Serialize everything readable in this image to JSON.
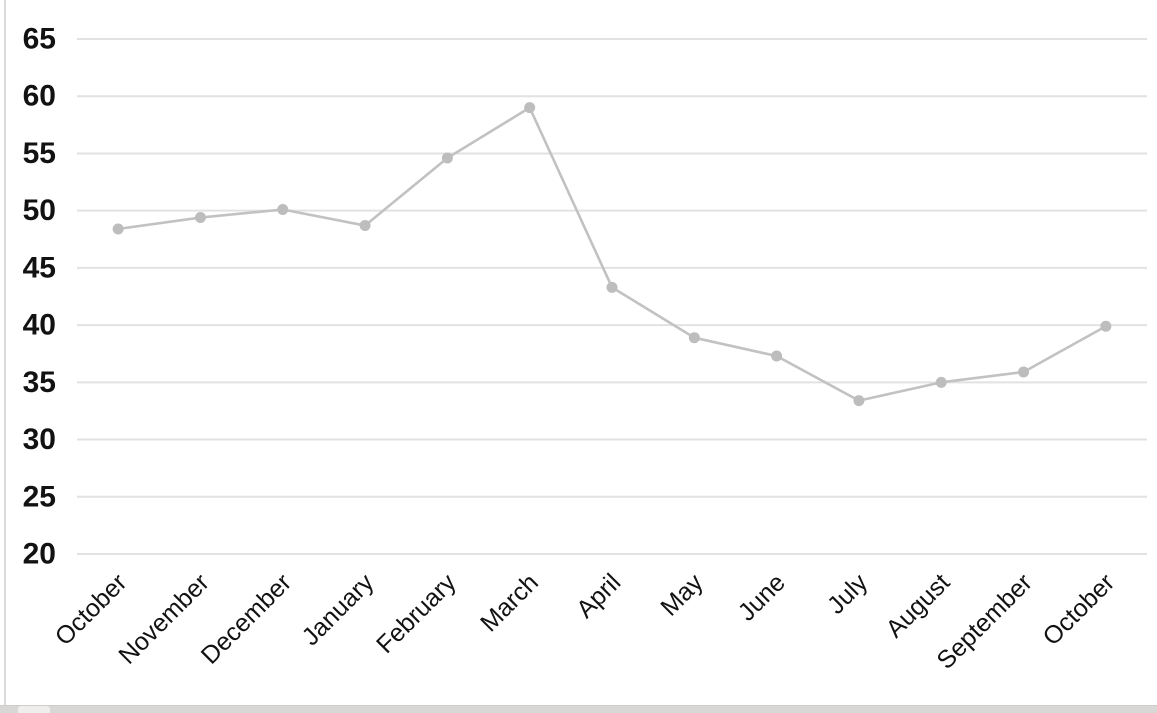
{
  "chart_data": {
    "type": "line",
    "categories": [
      "October",
      "November",
      "December",
      "January",
      "February",
      "March",
      "April",
      "May",
      "June",
      "July",
      "August",
      "September",
      "October"
    ],
    "values": [
      48.4,
      49.4,
      50.1,
      48.7,
      54.6,
      59.0,
      43.3,
      38.9,
      37.3,
      33.4,
      35.0,
      35.9,
      39.9
    ],
    "title": "",
    "xlabel": "",
    "ylabel": "",
    "ylim": [
      20,
      65
    ],
    "y_ticks": [
      65,
      60,
      55,
      50,
      45,
      40,
      35,
      30,
      25,
      20
    ],
    "grid": true,
    "legend": false,
    "x_label_rotation": -45,
    "colors": {
      "line": "#c2c2c2",
      "marker": "#bdbdbd",
      "gridline": "#e2e2e2",
      "tick_text": "#121212",
      "background": "#ffffff"
    }
  }
}
